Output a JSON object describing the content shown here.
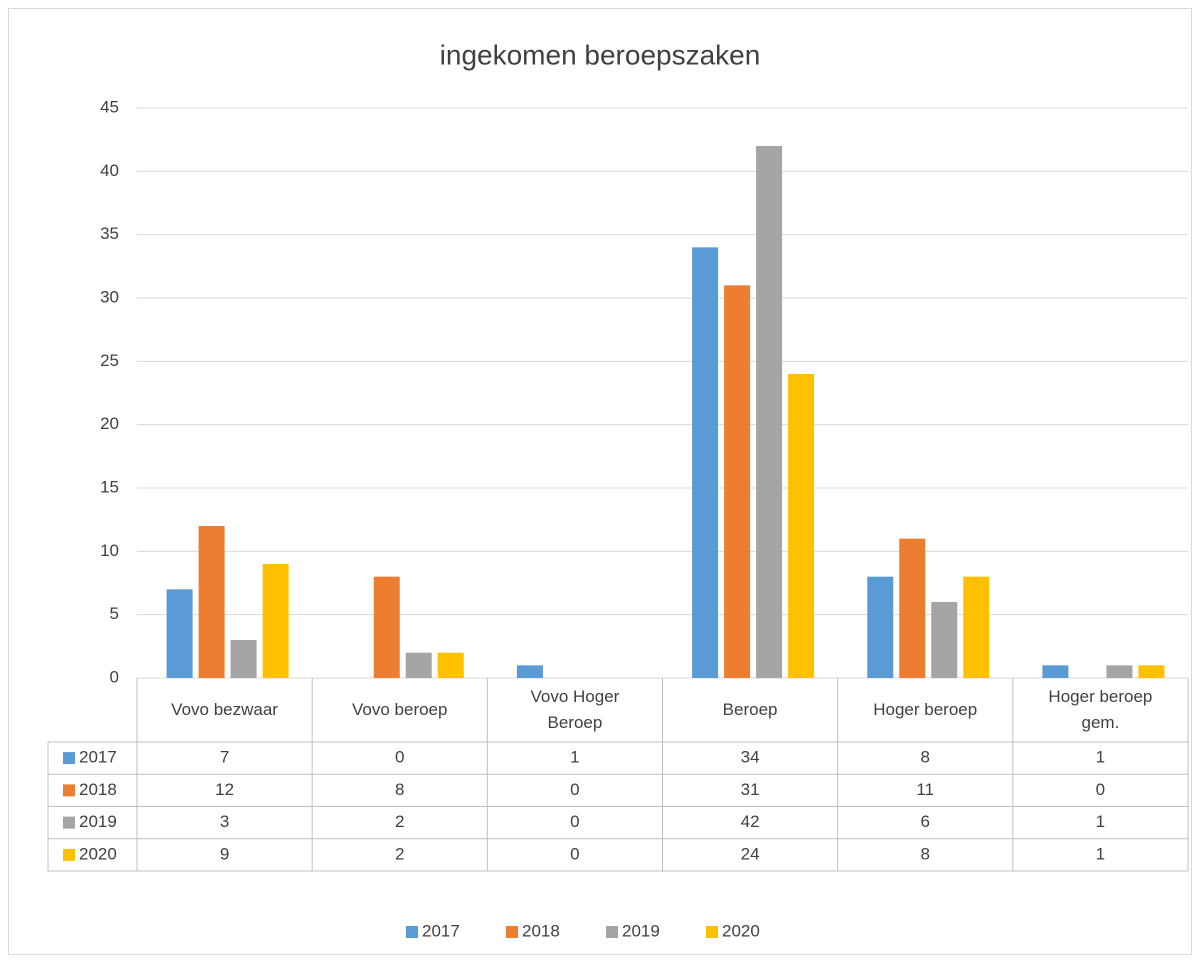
{
  "chart_data": {
    "type": "bar",
    "title": "ingekomen beroepszaken",
    "categories": [
      "Vovo bezwaar",
      "Vovo beroep",
      "Vovo Hoger Beroep",
      "Beroep",
      "Hoger beroep",
      "Hoger beroep gem."
    ],
    "series": [
      {
        "name": "2017",
        "color": "#5b9bd5",
        "values": [
          7,
          0,
          1,
          34,
          8,
          1
        ]
      },
      {
        "name": "2018",
        "color": "#ed7d31",
        "values": [
          12,
          8,
          0,
          31,
          11,
          0
        ]
      },
      {
        "name": "2019",
        "color": "#a5a5a5",
        "values": [
          3,
          2,
          0,
          42,
          6,
          1
        ]
      },
      {
        "name": "2020",
        "color": "#ffc000",
        "values": [
          9,
          2,
          0,
          24,
          8,
          1
        ]
      }
    ],
    "ylim": [
      0,
      45
    ],
    "yticks": [
      0,
      5,
      10,
      15,
      20,
      25,
      30,
      35,
      40,
      45
    ],
    "grid": true,
    "legend": "bottom",
    "data_table": true
  }
}
